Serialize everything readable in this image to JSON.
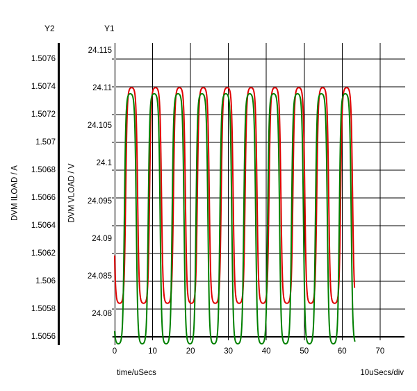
{
  "window": {
    "background": "#ffffff"
  },
  "header": {
    "y2": "Y2",
    "y1": "Y1"
  },
  "chart_data": {
    "type": "line",
    "title": "",
    "grid": true,
    "grid_color": "#000000",
    "x_axis": {
      "label": "time/uSecs",
      "scale_label": "10uSecs/div",
      "tick_labels": [
        "0",
        "10",
        "20",
        "30",
        "40",
        "50",
        "60",
        "70"
      ],
      "tick_step_us": 10,
      "range_us": [
        0,
        77
      ],
      "axis_color": "#000000"
    },
    "y1_axis": {
      "label": "DVM VLOAD / V",
      "unit": "V",
      "tick_labels": [
        "24.115",
        "24.11",
        "24.105",
        "24.1",
        "24.095",
        "24.09",
        "24.085",
        "24.08"
      ],
      "tick_step": 0.005,
      "axis_color": "#b4b4b4"
    },
    "y2_axis": {
      "label": "DVM ILOAD / A",
      "unit": "A",
      "tick_labels": [
        "1.5076",
        "1.5074",
        "1.5072",
        "1.507",
        "1.5068",
        "1.5066",
        "1.5064",
        "1.5062",
        "1.506",
        "1.5058",
        "1.5056"
      ],
      "tick_step": 0.0002,
      "axis_color": "#000000",
      "grid_source": true
    },
    "series": [
      {
        "name": "DVM VLOAD",
        "axis": "y1",
        "color": "#e00000",
        "waveform": "flattened_sine",
        "mean": 24.0958,
        "amplitude": 0.0143,
        "flatten": 2.5,
        "period_us": 6.3,
        "rising_mid_us": 2.9,
        "t_start_us": 0,
        "t_end_us": 63.3,
        "peak": 24.11,
        "trough": 24.0815
      },
      {
        "name": "DVM ILOAD",
        "axis": "y2",
        "color": "#008000",
        "waveform": "flattened_sine",
        "mean": 1.50645,
        "amplitude": 0.0009,
        "flatten": 2.5,
        "period_us": 6.3,
        "rising_mid_us": 2.55,
        "t_start_us": 0,
        "t_end_us": 63.4,
        "peak": 1.50735,
        "trough": 1.50555
      }
    ]
  }
}
